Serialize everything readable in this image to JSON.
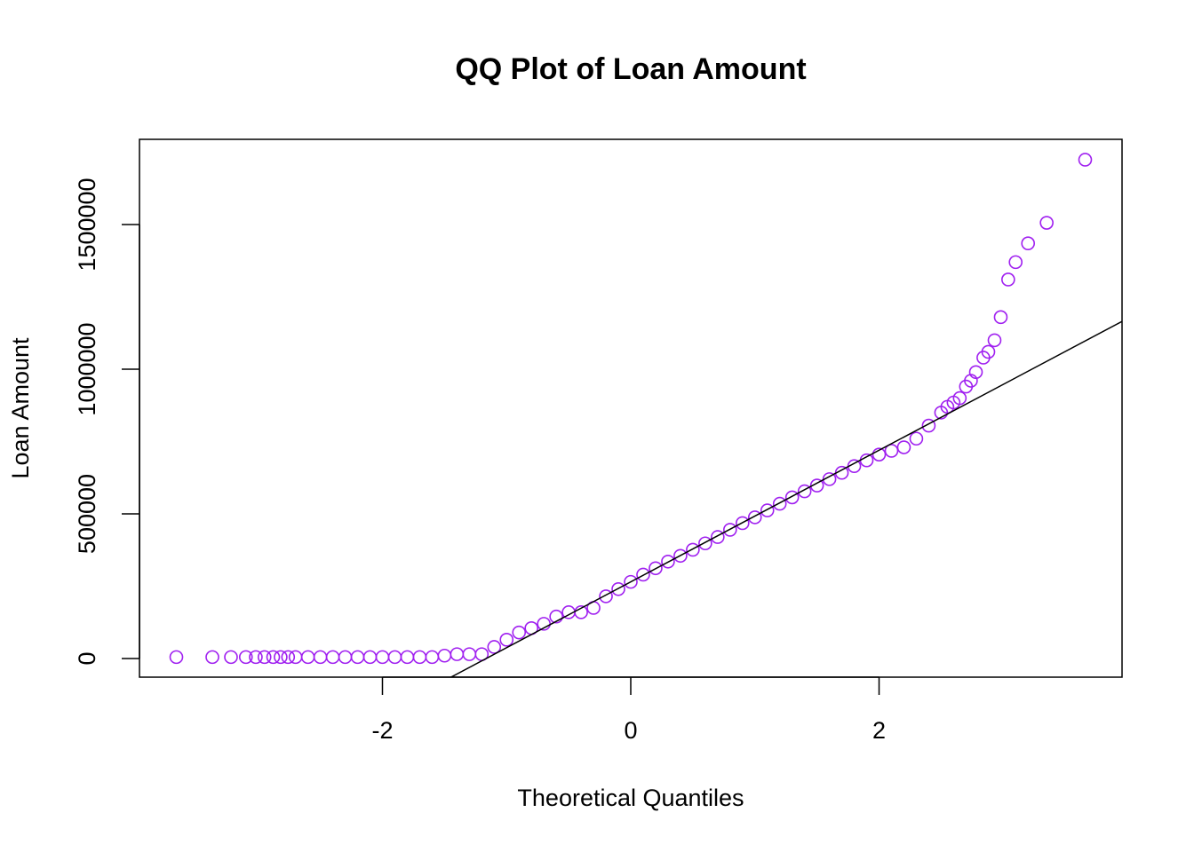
{
  "chart_data": {
    "type": "scatter",
    "title": "QQ Plot of Loan Amount",
    "x_label": "Theoretical Quantiles",
    "y_label": "Loan Amount",
    "xlim": [
      -3.957,
      3.957
    ],
    "ylim": [
      -64400,
      1794500
    ],
    "xticks": [
      -2,
      0,
      2
    ],
    "yticks": [
      0,
      500000,
      1000000,
      1500000
    ],
    "color": "#a020f0",
    "reference_line": {
      "intercept": 265000,
      "slope": 227500
    },
    "x": [
      -3.66,
      -3.37,
      -3.22,
      -3.1,
      -3.02,
      -2.95,
      -2.88,
      -2.82,
      -2.76,
      -2.7,
      -2.6,
      -2.5,
      -2.4,
      -2.3,
      -2.2,
      -2.1,
      -2.0,
      -1.9,
      -1.8,
      -1.7,
      -1.6,
      -1.5,
      -1.4,
      -1.3,
      -1.2,
      -1.1,
      -1.0,
      -0.9,
      -0.8,
      -0.7,
      -0.6,
      -0.5,
      -0.4,
      -0.3,
      -0.2,
      -0.1,
      0,
      0.1,
      0.2,
      0.3,
      0.4,
      0.5,
      0.6,
      0.7,
      0.8,
      0.9,
      1.0,
      1.1,
      1.2,
      1.3,
      1.4,
      1.5,
      1.6,
      1.7,
      1.8,
      1.9,
      2.0,
      2.1,
      2.2,
      2.3,
      2.4,
      2.5,
      2.55,
      2.6,
      2.65,
      2.7,
      2.74,
      2.78,
      2.84,
      2.88,
      2.93,
      2.98,
      3.04,
      3.1,
      3.2,
      3.35,
      3.66
    ],
    "values": [
      5000,
      5000,
      5000,
      5000,
      5000,
      5000,
      5000,
      5000,
      5000,
      5000,
      5000,
      5000,
      5000,
      5000,
      5000,
      5000,
      5000,
      5000,
      5000,
      5000,
      5000,
      10000,
      15000,
      15000,
      15000,
      40000,
      65000,
      90000,
      105000,
      120000,
      145000,
      160000,
      160000,
      175000,
      215000,
      240000,
      265000,
      290000,
      312000,
      335000,
      355000,
      376000,
      398000,
      420000,
      445000,
      468000,
      488000,
      512000,
      535000,
      557000,
      578000,
      598000,
      620000,
      642000,
      665000,
      685000,
      705000,
      718000,
      730000,
      760000,
      805000,
      850000,
      870000,
      885000,
      900000,
      940000,
      960000,
      990000,
      1040000,
      1060000,
      1100000,
      1180000,
      1310000,
      1370000,
      1435000,
      1506000,
      1724000
    ]
  }
}
